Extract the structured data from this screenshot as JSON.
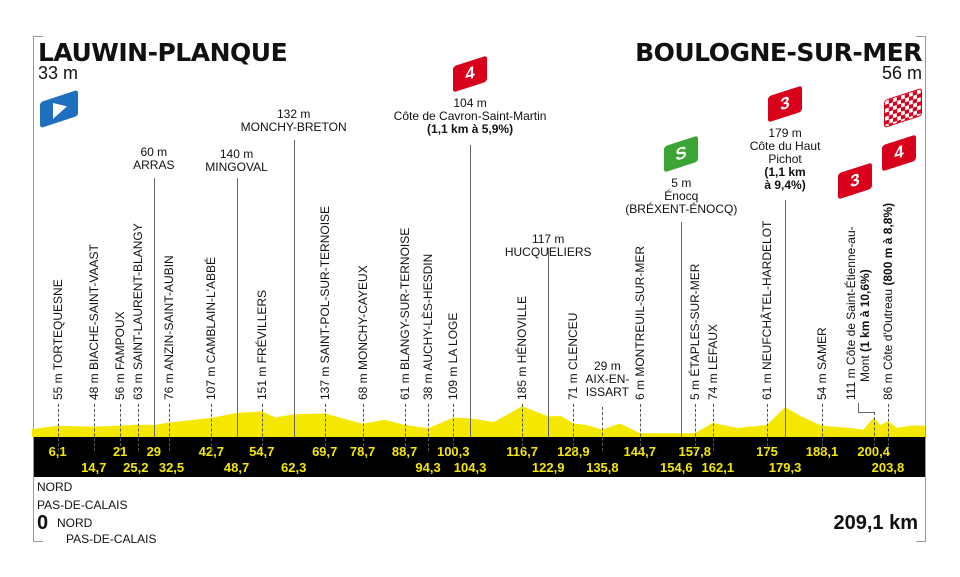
{
  "start": {
    "city": "LAUWIN-PLANQUE",
    "altitude": "33 m",
    "icon": "start-flag-icon"
  },
  "finish": {
    "city": "BOULOGNE-SUR-MER",
    "altitude": "56 m",
    "icon": "finish-checkered-flag-icon"
  },
  "footer": {
    "start_km": "0",
    "total_distance": "209,1 km",
    "departments": [
      "NORD",
      "PAS-DE-CALAIS",
      "NORD",
      "PAS-DE-CALAIS"
    ]
  },
  "colors": {
    "profile": "#f5e800",
    "band": "#000000",
    "km_text": "#f5e800",
    "climb_flag": "#d9001b",
    "sprint_flag": "#3aa535",
    "start_flag": "#1f6fbf"
  },
  "chart_data": {
    "type": "area",
    "xlabel": "",
    "ylabel": "",
    "xlim": [
      0,
      209.1
    ],
    "profile_points": [
      [
        0,
        33
      ],
      [
        6.1,
        55
      ],
      [
        14.7,
        48
      ],
      [
        21,
        56
      ],
      [
        25.2,
        63
      ],
      [
        29,
        60
      ],
      [
        32.5,
        76
      ],
      [
        42.7,
        107
      ],
      [
        48.7,
        140
      ],
      [
        54.7,
        151
      ],
      [
        58,
        110
      ],
      [
        62.3,
        132
      ],
      [
        69.7,
        137
      ],
      [
        78.7,
        68
      ],
      [
        84,
        95
      ],
      [
        88.7,
        61
      ],
      [
        94.3,
        38
      ],
      [
        100.3,
        109
      ],
      [
        104.3,
        104
      ],
      [
        110,
        80
      ],
      [
        116.7,
        185
      ],
      [
        122.9,
        117
      ],
      [
        126,
        120
      ],
      [
        128.9,
        71
      ],
      [
        132,
        60
      ],
      [
        135.8,
        29
      ],
      [
        140,
        70
      ],
      [
        144.7,
        6
      ],
      [
        150,
        5
      ],
      [
        154.6,
        5
      ],
      [
        157.8,
        5
      ],
      [
        162.1,
        74
      ],
      [
        168,
        40
      ],
      [
        175,
        61
      ],
      [
        179.3,
        179
      ],
      [
        183,
        120
      ],
      [
        188.1,
        54
      ],
      [
        195,
        40
      ],
      [
        198,
        30
      ],
      [
        200.4,
        111
      ],
      [
        202,
        60
      ],
      [
        203.8,
        86
      ],
      [
        206,
        40
      ],
      [
        209.1,
        56
      ]
    ],
    "km_top_row": [
      "6,1",
      "21",
      "29",
      "42,7",
      "54,7",
      "69,7",
      "78,7",
      "88,7",
      "100,3",
      "116,7",
      "128,9",
      "144,7",
      "157,8",
      "175",
      "188,1",
      "200,4"
    ],
    "km_top_pos": [
      6.1,
      21,
      29,
      42.7,
      54.7,
      69.7,
      78.7,
      88.7,
      100.3,
      116.7,
      128.9,
      144.7,
      157.8,
      175,
      188.1,
      200.4
    ],
    "km_bottom_row": [
      "14,7",
      "25,2",
      "32,5",
      "48,7",
      "62,3",
      "94,3",
      "104,3",
      "122,9",
      "135,8",
      "154,6",
      "162,1",
      "179,3",
      "203,8"
    ],
    "km_bottom_pos": [
      14.7,
      25.2,
      32.5,
      48.7,
      62.3,
      94.3,
      104.3,
      122.9,
      135.8,
      154.6,
      162.1,
      179.3,
      203.8
    ],
    "vertical_points": [
      {
        "km": 6.1,
        "text": "55 m TORTEQUESNE"
      },
      {
        "km": 14.7,
        "text": "48 m BIACHE-SAINT-VAAST"
      },
      {
        "km": 21,
        "text": "56 m FAMPOUX"
      },
      {
        "km": 25.2,
        "text": "63 m SAINT-LAURENT-BLANGY"
      },
      {
        "km": 32.5,
        "text": "76 m ANZIN-SAINT-AUBIN"
      },
      {
        "km": 42.7,
        "text": "107 m CAMBLAIN-L'ABBÉ"
      },
      {
        "km": 54.7,
        "text": "151 m FRÉVILLERS"
      },
      {
        "km": 69.7,
        "text": "137 m SAINT-POL-SUR-TERNOISE"
      },
      {
        "km": 78.7,
        "text": "68 m MONCHY-CAYEUX"
      },
      {
        "km": 88.7,
        "text": "61 m BLANGY-SUR-TERNOISE"
      },
      {
        "km": 94.3,
        "text": "38 m AUCHY-LÈS-HESDIN"
      },
      {
        "km": 100.3,
        "text": "109 m LA LOGE"
      },
      {
        "km": 116.7,
        "text": "185 m HÉNOVILLE"
      },
      {
        "km": 128.9,
        "text": "71 m CLENCEU"
      },
      {
        "km": 144.7,
        "text": "6 m MONTREUIL-SUR-MER"
      },
      {
        "km": 157.8,
        "text": "5 m ÉTAPLES-SUR-MER"
      },
      {
        "km": 162.1,
        "text": "74 m LEFAUX"
      },
      {
        "km": 175,
        "text": "61 m NEUFCHÂTEL-HARDELOT"
      },
      {
        "km": 188.1,
        "text": "54 m SAMER"
      },
      {
        "km": 200.4,
        "text": "111 m Côte de Saint-Étienne-au-",
        "text2": "Mont ",
        "bold": "(1 km à 10,6%)",
        "flag": "3"
      },
      {
        "km": 203.8,
        "text": "86 m Côte d'Outreau ",
        "bold": "(800 m à 8,8%)",
        "flag": "4"
      }
    ],
    "top_points": [
      {
        "km": 29,
        "alt": "60 m",
        "name": "ARRAS"
      },
      {
        "km": 48.7,
        "alt": "140 m",
        "name": "MINGOVAL"
      },
      {
        "km": 62.3,
        "alt": "132 m",
        "name": "MONCHY-BRETON"
      },
      {
        "km": 104.3,
        "alt": "104 m",
        "name": "Côte de Cavron-Saint-Martin",
        "detail": "(1,1 km à 5,9%)",
        "flag": "4",
        "flag_type": "climb"
      },
      {
        "km": 122.9,
        "alt": "117 m",
        "name": "HUCQUELIERS"
      },
      {
        "km": 135.8,
        "alt": "29 m",
        "name": "AIX-EN-",
        "name2": "ISSART"
      },
      {
        "km": 154.6,
        "alt": "5 m",
        "name": "Énocq",
        "name2": "(BRÉXENT-ÉNOCQ)",
        "flag": "S",
        "flag_type": "sprint"
      },
      {
        "km": 179.3,
        "alt": "179 m",
        "name": "Côte du Haut",
        "name2": "Pichot",
        "detail": "(1,1 km",
        "detail2": "à 9,4%)",
        "flag": "3",
        "flag_type": "climb"
      }
    ]
  }
}
